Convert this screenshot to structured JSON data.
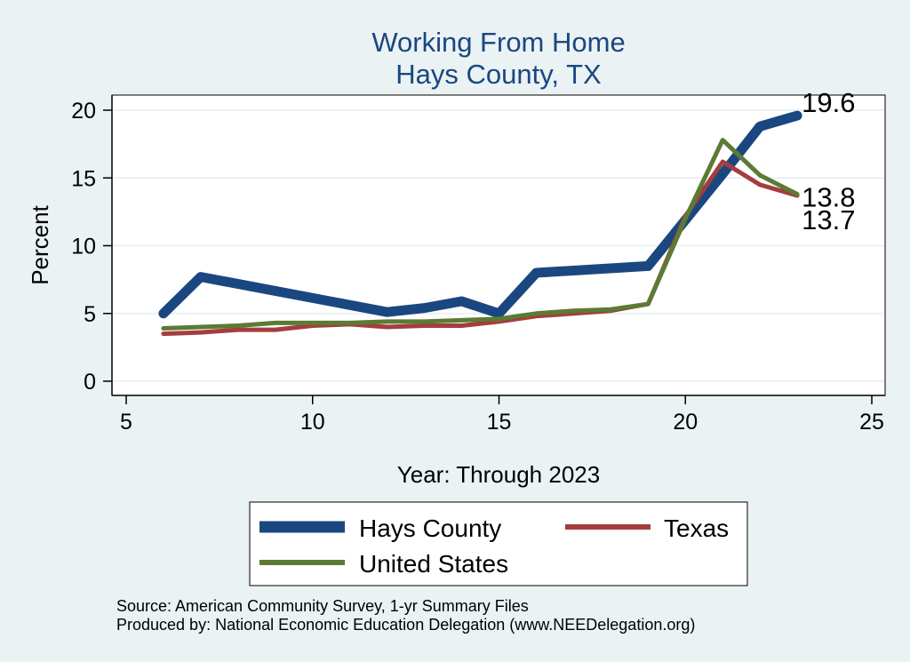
{
  "colors": {
    "background": "#eaf2f3",
    "plot_background": "#ffffff",
    "grid": "#eaf2f3",
    "title": "#1a4780"
  },
  "chart_data": {
    "type": "line",
    "title": "Working From Home",
    "subtitle": "Hays County, TX",
    "xlabel": "Year: Through 2023",
    "ylabel": "Percent",
    "xlim": [
      5,
      25
    ],
    "ylim": [
      0,
      20
    ],
    "xticks": [
      "5",
      "10",
      "15",
      "20",
      "25"
    ],
    "yticks": [
      "0",
      "5",
      "10",
      "15",
      "20"
    ],
    "grid": true,
    "legend_position": "bottom",
    "series": [
      {
        "name": "Hays County",
        "color": "#1a4780",
        "x": [
          6,
          7,
          12,
          13,
          14,
          15,
          16,
          19,
          21,
          22,
          23
        ],
        "y": [
          5.0,
          7.7,
          5.1,
          5.4,
          5.9,
          5.0,
          8.0,
          8.5,
          15.3,
          18.8,
          19.6
        ]
      },
      {
        "name": "Texas",
        "color": "#a53d3e",
        "x": [
          6,
          7,
          8,
          9,
          10,
          11,
          12,
          13,
          14,
          15,
          16,
          17,
          18,
          19,
          20,
          21,
          22,
          23
        ],
        "y": [
          3.5,
          3.6,
          3.8,
          3.8,
          4.1,
          4.2,
          4.0,
          4.1,
          4.1,
          4.4,
          4.8,
          5.0,
          5.2,
          5.7,
          12.2,
          16.2,
          14.5,
          13.7
        ]
      },
      {
        "name": "United States",
        "color": "#5b7b33",
        "x": [
          6,
          7,
          8,
          9,
          10,
          11,
          12,
          13,
          14,
          15,
          16,
          17,
          18,
          19,
          20,
          21,
          22,
          23
        ],
        "y": [
          3.9,
          4.0,
          4.1,
          4.3,
          4.3,
          4.3,
          4.4,
          4.4,
          4.5,
          4.6,
          5.0,
          5.2,
          5.3,
          5.7,
          12.0,
          17.8,
          15.2,
          13.8
        ]
      }
    ],
    "end_labels": [
      {
        "text": "19.6",
        "x": 23,
        "y": 19.6
      },
      {
        "text": "13.8",
        "x": 23,
        "y": 13.8
      },
      {
        "text": "13.7",
        "x": 23,
        "y": 13.7
      }
    ],
    "notes": [
      "Source: American Community Survey, 1-yr Summary Files",
      "Produced by: National Economic Education Delegation (www.NEEDelegation.org)"
    ]
  }
}
